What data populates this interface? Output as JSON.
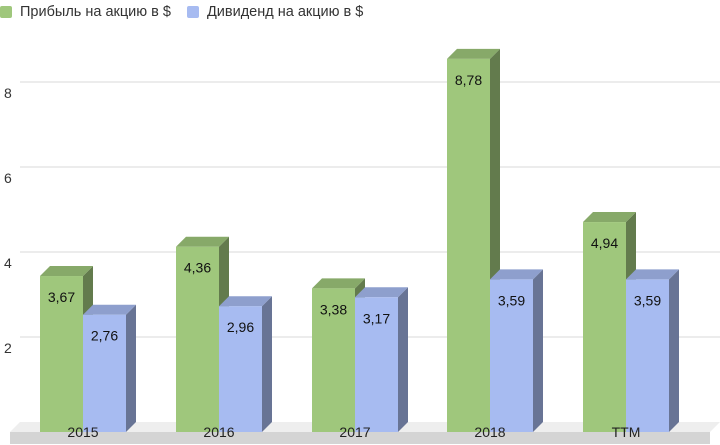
{
  "legend": [
    {
      "label": "Прибыль на акцию в $",
      "color": "#9fc77c"
    },
    {
      "label": "Дивиденд на акцию в $",
      "color": "#a7bbf1"
    }
  ],
  "chart_data": {
    "type": "bar",
    "style": "3d-column",
    "title": "",
    "xlabel": "",
    "ylabel": "",
    "categories": [
      "2015",
      "2016",
      "2017",
      "2018",
      "TTM"
    ],
    "series": [
      {
        "name": "Прибыль на акцию в $",
        "values": [
          3.67,
          4.36,
          3.38,
          8.78,
          4.94
        ],
        "labels": [
          "3,67",
          "4,36",
          "3,38",
          "8,78",
          "4,94"
        ],
        "color": "#9fc77c"
      },
      {
        "name": "Дивиденд на акцию в $",
        "values": [
          2.76,
          2.96,
          3.17,
          3.59,
          3.59
        ],
        "labels": [
          "2,76",
          "2,96",
          "3,17",
          "3,59",
          "3,59"
        ],
        "color": "#a7bbf1"
      }
    ],
    "yticks": [
      "2",
      "4",
      "6",
      "8"
    ],
    "ylim": [
      0,
      9
    ],
    "grid": true,
    "legend_position": "top-left"
  }
}
